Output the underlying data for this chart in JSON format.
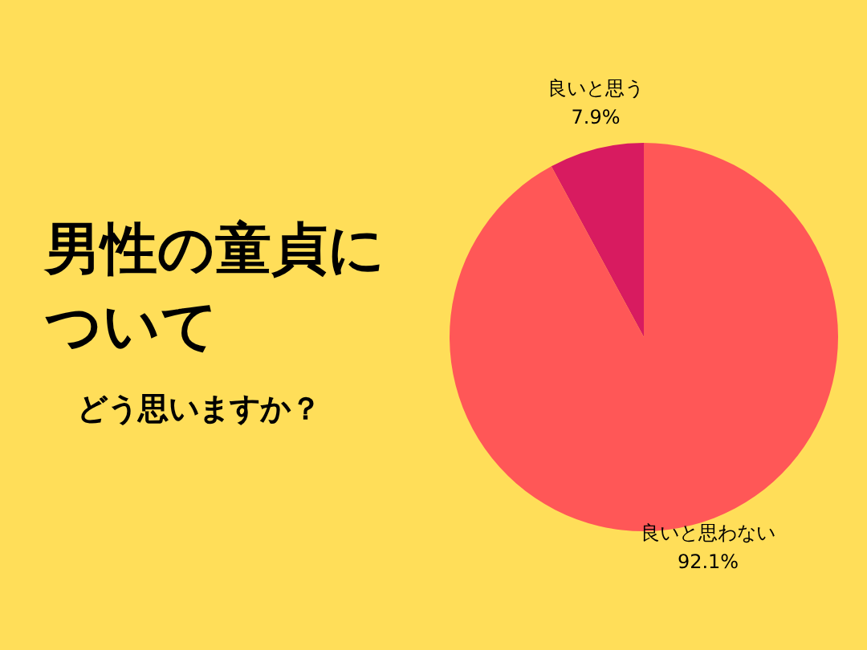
{
  "chart_data": {
    "type": "pie",
    "title": "男性の童貞について",
    "subtitle": "どう思いますか？",
    "categories": [
      "良いと思う",
      "良いと思わない"
    ],
    "values": [
      7.9,
      92.1
    ],
    "value_labels": [
      "7.9%",
      "92.1%"
    ],
    "colors": [
      "#d81b60",
      "#ff5757"
    ]
  }
}
